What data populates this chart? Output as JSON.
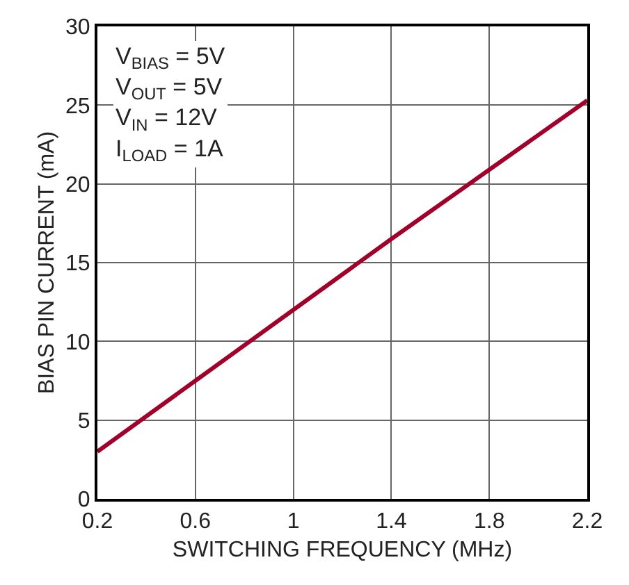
{
  "chart_data": {
    "type": "line",
    "xlabel": "SWITCHING FREQUENCY (MHz)",
    "ylabel": "BIAS PIN CURRENT (mA)",
    "x": [
      0.2,
      0.6,
      1.0,
      1.4,
      1.8,
      2.2
    ],
    "series": [
      {
        "color": "#a0002a",
        "values": [
          3.0,
          7.5,
          12.0,
          16.5,
          20.9,
          25.3
        ]
      }
    ],
    "xlim": [
      0.2,
      2.2
    ],
    "xticks": [
      0.2,
      0.6,
      1,
      1.4,
      1.8,
      2.2
    ],
    "ylim": [
      0,
      30
    ],
    "yticks": [
      0,
      5,
      10,
      15,
      20,
      25,
      30
    ],
    "grid": true,
    "marker": "none",
    "line_style": "solid",
    "annotations": [
      "V$_{BIAS}$ = 5V\nV$_{OUT}$ = 5V\nV$_{IN}$ = 12V\nI$_{LOAD}$ = 1A"
    ]
  }
}
